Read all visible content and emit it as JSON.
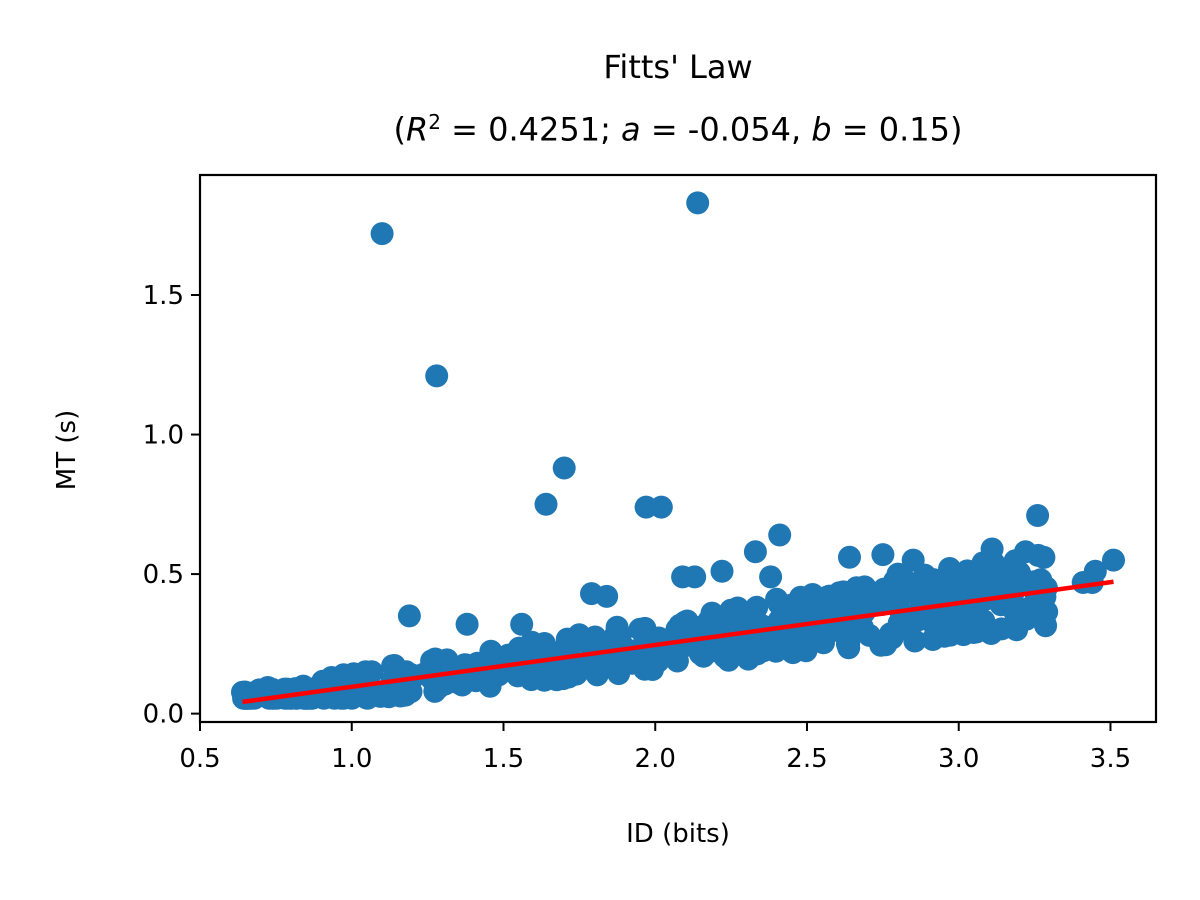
{
  "chart_data": {
    "type": "scatter",
    "title": "Fitts' Law",
    "subtitle_parts": {
      "open": "(",
      "r_symbol": "R",
      "r_exp": "2",
      "r_value": " = 0.4251; ",
      "a_symbol": "a",
      "a_value": " = -0.054, ",
      "b_symbol": "b",
      "b_value": " = 0.15)"
    },
    "xlabel": "ID (bits)",
    "ylabel": "MT (s)",
    "xlim": [
      0.5,
      3.65
    ],
    "ylim": [
      -0.03,
      1.93
    ],
    "xticks": [
      0.5,
      1.0,
      1.5,
      2.0,
      2.5,
      3.0,
      3.5
    ],
    "xtick_labels": [
      "0.5",
      "1.0",
      "1.5",
      "2.0",
      "2.5",
      "3.0",
      "3.5"
    ],
    "yticks": [
      0.0,
      0.5,
      1.0,
      1.5
    ],
    "ytick_labels": [
      "0.0",
      "0.5",
      "1.0",
      "1.5"
    ],
    "grid": false,
    "point_color": "#1f77b4",
    "fit_color": "#ff0000",
    "fit_line": {
      "a": -0.054,
      "b": 0.15,
      "x_range": [
        0.64,
        3.51
      ]
    },
    "outliers": [
      [
        1.1,
        1.72
      ],
      [
        2.14,
        1.83
      ],
      [
        1.28,
        1.21
      ],
      [
        1.7,
        0.88
      ],
      [
        1.64,
        0.75
      ],
      [
        1.97,
        0.74
      ],
      [
        2.02,
        0.74
      ],
      [
        3.26,
        0.71
      ],
      [
        2.41,
        0.64
      ],
      [
        2.33,
        0.58
      ],
      [
        3.22,
        0.58
      ],
      [
        3.11,
        0.59
      ],
      [
        2.75,
        0.57
      ],
      [
        2.64,
        0.56
      ],
      [
        3.51,
        0.55
      ],
      [
        2.85,
        0.55
      ],
      [
        2.09,
        0.49
      ],
      [
        2.13,
        0.49
      ],
      [
        2.22,
        0.51
      ],
      [
        2.38,
        0.49
      ],
      [
        2.97,
        0.52
      ],
      [
        3.08,
        0.54
      ],
      [
        3.45,
        0.51
      ],
      [
        3.27,
        0.48
      ],
      [
        3.41,
        0.47
      ],
      [
        3.44,
        0.47
      ],
      [
        1.79,
        0.43
      ],
      [
        1.84,
        0.42
      ],
      [
        1.19,
        0.35
      ],
      [
        1.38,
        0.32
      ],
      [
        1.56,
        0.32
      ],
      [
        2.4,
        0.41
      ],
      [
        2.8,
        0.5
      ],
      [
        2.5,
        0.38
      ],
      [
        2.6,
        0.4
      ],
      [
        2.9,
        0.38
      ]
    ],
    "band": {
      "n": 480,
      "x_range": [
        0.64,
        3.3
      ],
      "note": "dense cluster of points around the fit line"
    }
  }
}
